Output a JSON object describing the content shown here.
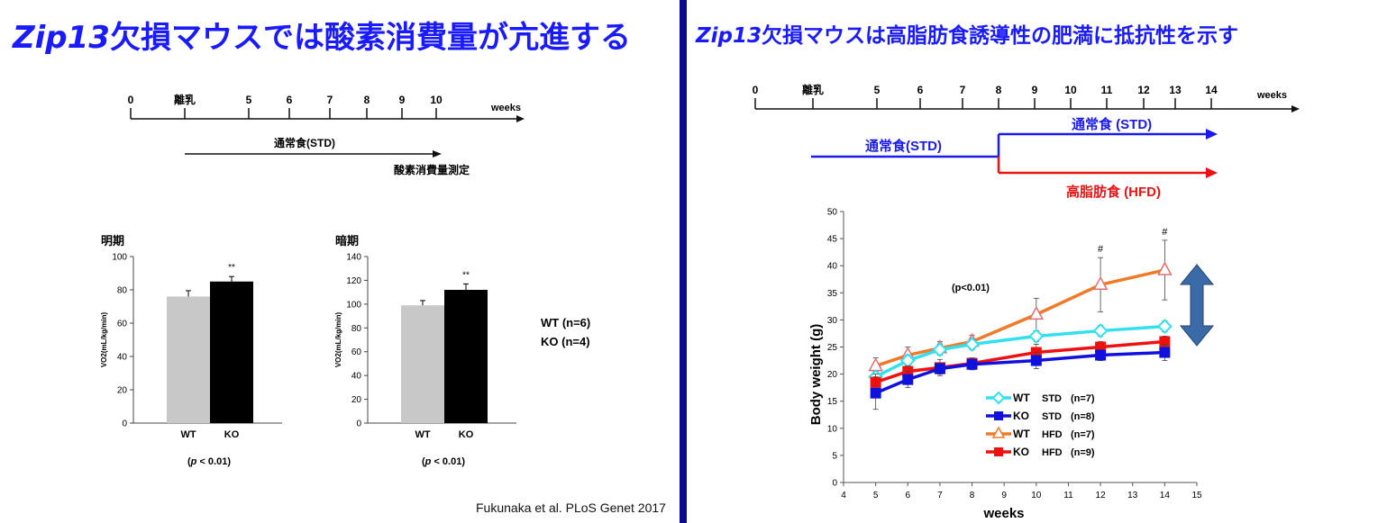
{
  "left": {
    "title_prefix": "Zip13",
    "title_rest": "欠損マウスでは酸素消費量が亢進する",
    "timeline": {
      "ticks": [
        "0",
        "離乳",
        "5",
        "6",
        "7",
        "8",
        "9",
        "10"
      ],
      "unit": "weeks",
      "diet_label": "通常食(STD)",
      "measure_label": "酸素消費量測定"
    },
    "n_labels": [
      "WT (n=6)",
      "KO (n=4)"
    ],
    "citation": "Fukunaka et al. PLoS Genet 2017"
  },
  "right": {
    "title_prefix": "Zip13",
    "title_rest": "欠損マウスは高脂肪食誘導性の肥満に抵抗性を示す",
    "timeline": {
      "ticks": [
        "0",
        "離乳",
        "5",
        "6",
        "7",
        "8",
        "9",
        "10",
        "11",
        "12",
        "13",
        "14"
      ],
      "unit": "weeks",
      "std_before": "通常食(STD)",
      "std_after": "通常食 (STD)",
      "hfd": "高脂肪食 (HFD)"
    }
  },
  "colors": {
    "title_blue": "#1a1aff",
    "std_blue": "#1a1aee",
    "hfd_red": "#ee1111",
    "wt_bar": "#c8c8c8",
    "ko_bar": "#000000",
    "wt_std": "#33e0f0",
    "ko_std": "#1111dd",
    "wt_hfd": "#f07a28",
    "ko_hfd": "#ee1111",
    "arrow_fill": "#3a6aa8"
  },
  "chart_data": [
    {
      "type": "bar",
      "title": "明期",
      "ylabel": "VO2(mL/kg/min)",
      "categories": [
        "WT",
        "KO"
      ],
      "values": [
        76,
        85
      ],
      "errors": [
        3.5,
        3
      ],
      "ylim": [
        0,
        100
      ],
      "yticks": [
        0,
        20,
        40,
        60,
        80,
        100
      ],
      "significance": "**",
      "pvalue": "(p < 0.01)"
    },
    {
      "type": "bar",
      "title": "暗期",
      "ylabel": "VO2(mL/kg/min)",
      "categories": [
        "WT",
        "KO"
      ],
      "values": [
        99,
        112
      ],
      "errors": [
        4,
        5
      ],
      "ylim": [
        0,
        140
      ],
      "yticks": [
        0,
        20,
        40,
        60,
        80,
        100,
        120,
        140
      ],
      "significance": "**",
      "pvalue": "(p < 0.01)"
    },
    {
      "type": "line",
      "xlabel": "weeks",
      "ylabel": "Body weight  (g)",
      "xlim": [
        4,
        15
      ],
      "ylim": [
        0,
        50
      ],
      "xticks": [
        4,
        5,
        6,
        7,
        8,
        9,
        10,
        11,
        12,
        13,
        14,
        15
      ],
      "yticks": [
        0,
        5,
        10,
        15,
        20,
        25,
        30,
        35,
        40,
        45,
        50
      ],
      "annotation": "(p<0.01)",
      "x": [
        5,
        6,
        7,
        8,
        10,
        12,
        14
      ],
      "series": [
        {
          "name": "WT",
          "legend_group": "STD",
          "legend_n": "(n=7)",
          "marker": "diamond",
          "values": [
            19.5,
            22.5,
            24.5,
            25.5,
            27,
            28,
            28.8
          ],
          "errors": [
            1,
            1,
            1,
            1,
            1,
            1,
            1
          ]
        },
        {
          "name": "KO",
          "legend_group": "STD",
          "legend_n": "(n=8)",
          "marker": "square",
          "values": [
            16.5,
            19,
            21,
            21.8,
            22.5,
            23.5,
            24
          ],
          "errors": [
            3,
            1.5,
            1,
            1,
            1.5,
            1,
            1.5
          ]
        },
        {
          "name": "WT",
          "legend_group": "HFD",
          "legend_n": "(n=7)",
          "marker": "triangle",
          "values": [
            21.5,
            23.5,
            24.8,
            26,
            31,
            36.5,
            39.2
          ],
          "errors": [
            1.5,
            1.5,
            1.2,
            1.2,
            3,
            5,
            5.5
          ],
          "flags": [
            "",
            "",
            "",
            "",
            "",
            "#",
            "#"
          ]
        },
        {
          "name": "KO",
          "legend_group": "HFD",
          "legend_n": "(n=9)",
          "marker": "square",
          "values": [
            18.5,
            20.5,
            21.2,
            22,
            24,
            25,
            26
          ],
          "errors": [
            1.5,
            1,
            1.5,
            1,
            1.5,
            1,
            1
          ]
        }
      ]
    }
  ]
}
